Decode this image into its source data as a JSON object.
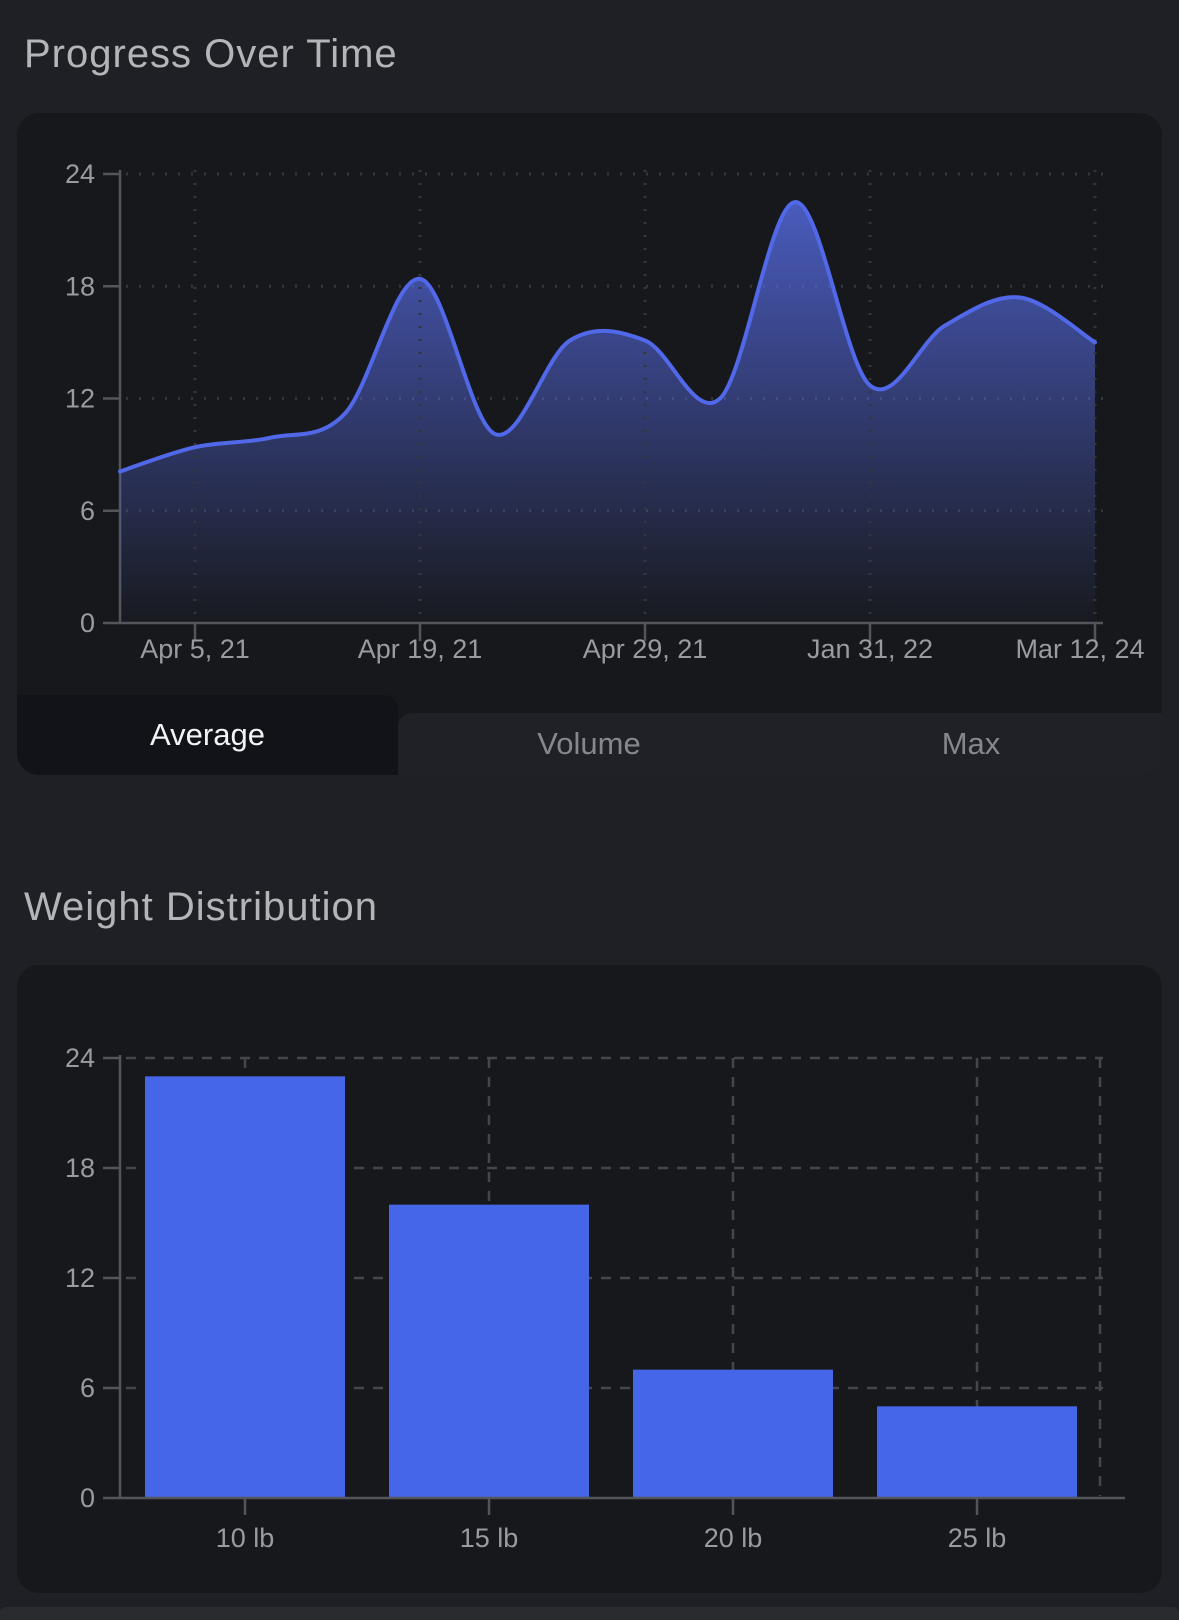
{
  "page": {
    "bg_color": "#1f2025",
    "card_color": "#17181b",
    "accent_color": "#4666e9"
  },
  "progress_section": {
    "title": "Progress Over Time",
    "tabs": [
      {
        "label": "Average",
        "selected": true
      },
      {
        "label": "Volume",
        "selected": false
      },
      {
        "label": "Max",
        "selected": false
      }
    ]
  },
  "weight_section": {
    "title": "Weight Distribution"
  },
  "chart_data": [
    {
      "type": "area",
      "title": "Progress Over Time",
      "x_tick_labels": [
        "Apr 5, 21",
        "Apr 19, 21",
        "Apr 29, 21",
        "Jan 31, 22",
        "Mar 12, 24"
      ],
      "x_tick_point_indices": [
        1,
        4,
        7,
        10,
        13
      ],
      "values": [
        8.1,
        9.4,
        9.9,
        11.2,
        18.4,
        10.1,
        15.1,
        15.1,
        12.0,
        22.5,
        12.7,
        15.9,
        17.4,
        15.0
      ],
      "y_ticks": [
        0,
        6,
        12,
        18,
        24
      ],
      "ylim": [
        0,
        24
      ],
      "grid": "dotted",
      "legend": "none",
      "line_color": "#5169e9",
      "fill_top_color": "rgba(86,108,230,0.85)",
      "fill_bottom_color": "rgba(86,108,230,0.02)"
    },
    {
      "type": "bar",
      "title": "Weight Distribution",
      "categories": [
        "10 lb",
        "15 lb",
        "20 lb",
        "25 lb"
      ],
      "values": [
        23,
        16,
        7,
        5
      ],
      "y_ticks": [
        0,
        6,
        12,
        18,
        24
      ],
      "ylim": [
        0,
        24
      ],
      "grid": "dashed",
      "legend": "none",
      "bar_color": "#4666e9"
    }
  ]
}
